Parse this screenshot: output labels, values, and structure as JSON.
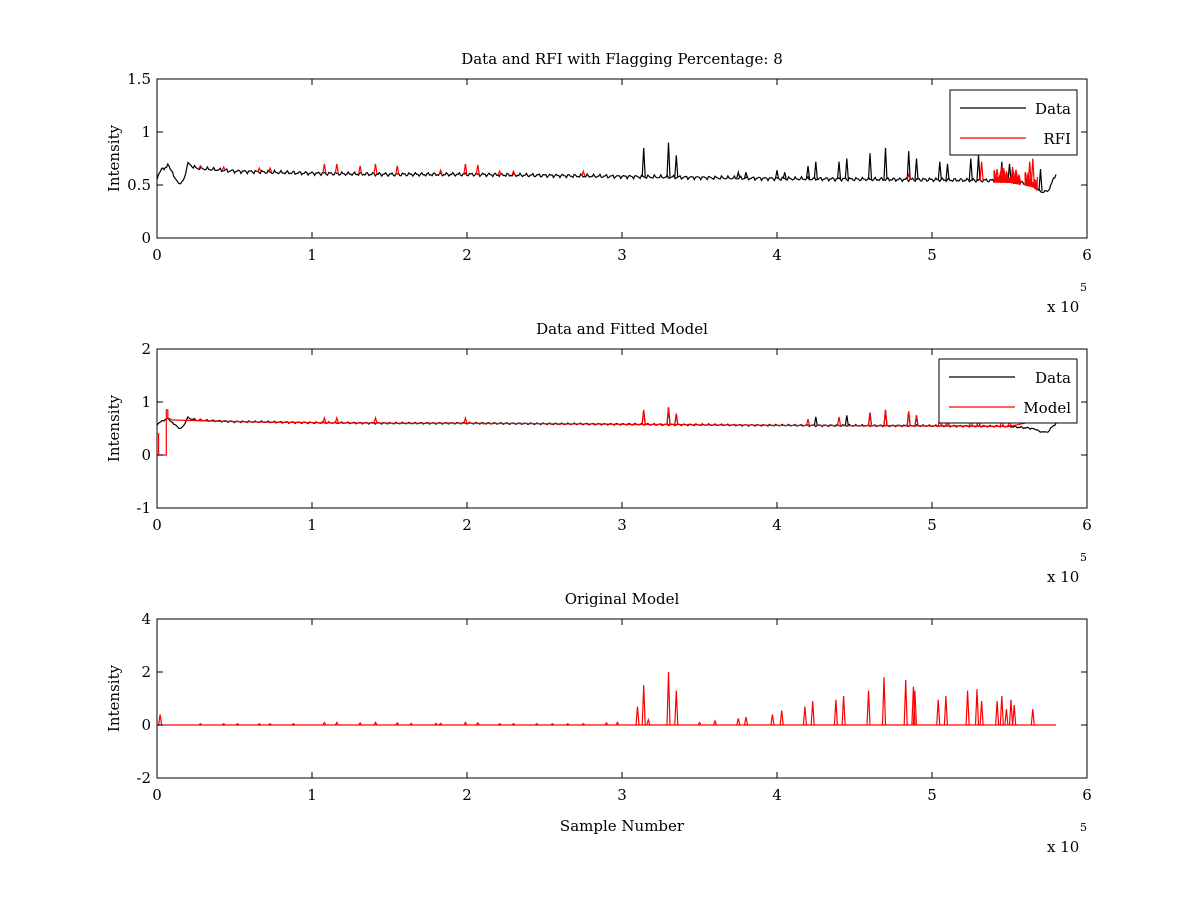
{
  "colors": {
    "data": "#000000",
    "rfi": "#ff0000",
    "model": "#ff0000",
    "axes": "#000000",
    "background": "#ffffff"
  },
  "chart_data": [
    {
      "type": "line",
      "title": "Data and RFI with Flagging Percentage: 8",
      "xlabel": "",
      "ylabel": "Intensity",
      "xlim": [
        0,
        6
      ],
      "ylim": [
        0,
        1.5
      ],
      "x_ticks": [
        "0",
        "1",
        "2",
        "3",
        "4",
        "5",
        "6"
      ],
      "y_ticks": [
        "0",
        "0.5",
        "1",
        "1.5"
      ],
      "x_exponent": {
        "base": "x 10",
        "power": "5"
      },
      "legend": {
        "position": "top-right",
        "entries": [
          "Data",
          "RFI"
        ]
      },
      "series": [
        {
          "name": "Data",
          "color": "#000000",
          "baseline": [
            [
              0,
              0.55
            ],
            [
              0.03,
              0.65
            ],
            [
              0.07,
              0.68
            ],
            [
              0.1,
              0.62
            ],
            [
              0.14,
              0.5
            ],
            [
              0.17,
              0.55
            ],
            [
              0.2,
              0.7
            ],
            [
              0.25,
              0.66
            ],
            [
              0.5,
              0.63
            ],
            [
              1,
              0.61
            ],
            [
              1.5,
              0.6
            ],
            [
              2,
              0.6
            ],
            [
              2.5,
              0.59
            ],
            [
              3,
              0.58
            ],
            [
              3.5,
              0.57
            ],
            [
              4,
              0.56
            ],
            [
              4.5,
              0.555
            ],
            [
              5,
              0.55
            ],
            [
              5.5,
              0.54
            ],
            [
              5.65,
              0.5
            ],
            [
              5.72,
              0.42
            ],
            [
              5.75,
              0.45
            ],
            [
              5.8,
              0.6
            ]
          ],
          "spikes": [
            [
              3.14,
              0.85
            ],
            [
              3.3,
              0.9
            ],
            [
              3.35,
              0.78
            ],
            [
              3.75,
              0.62
            ],
            [
              3.8,
              0.62
            ],
            [
              4.0,
              0.64
            ],
            [
              4.05,
              0.62
            ],
            [
              4.2,
              0.68
            ],
            [
              4.25,
              0.72
            ],
            [
              4.4,
              0.72
            ],
            [
              4.45,
              0.75
            ],
            [
              4.6,
              0.8
            ],
            [
              4.7,
              0.85
            ],
            [
              4.85,
              0.82
            ],
            [
              4.9,
              0.75
            ],
            [
              5.05,
              0.72
            ],
            [
              5.1,
              0.7
            ],
            [
              5.25,
              0.75
            ],
            [
              5.3,
              0.78
            ],
            [
              5.45,
              0.72
            ],
            [
              5.5,
              0.7
            ],
            [
              5.7,
              0.65
            ]
          ]
        },
        {
          "name": "RFI",
          "color": "#ff0000",
          "spikes": [
            [
              0.28,
              0.68
            ],
            [
              0.43,
              0.67
            ],
            [
              0.66,
              0.66
            ],
            [
              0.73,
              0.66
            ],
            [
              1.08,
              0.7
            ],
            [
              1.16,
              0.7
            ],
            [
              1.31,
              0.68
            ],
            [
              1.41,
              0.7
            ],
            [
              1.55,
              0.68
            ],
            [
              1.83,
              0.64
            ],
            [
              1.99,
              0.7
            ],
            [
              2.07,
              0.69
            ],
            [
              2.21,
              0.63
            ],
            [
              2.3,
              0.63
            ],
            [
              2.75,
              0.63
            ],
            [
              4.85,
              0.6
            ],
            [
              5.32,
              0.72
            ],
            [
              5.42,
              0.65
            ],
            [
              5.45,
              0.68
            ],
            [
              5.52,
              0.67
            ],
            [
              5.63,
              0.72
            ],
            [
              5.65,
              0.75
            ]
          ],
          "bursts": [
            [
              5.4,
              5.57
            ],
            [
              5.6,
              5.68
            ]
          ]
        }
      ]
    },
    {
      "type": "line",
      "title": "Data and Fitted Model",
      "xlabel": "",
      "ylabel": "Intensity",
      "xlim": [
        0,
        6
      ],
      "ylim": [
        -1,
        2
      ],
      "x_ticks": [
        "0",
        "1",
        "2",
        "3",
        "4",
        "5",
        "6"
      ],
      "y_ticks": [
        "-1",
        "0",
        "1",
        "2"
      ],
      "x_exponent": {
        "base": "x 10",
        "power": "5"
      },
      "legend": {
        "position": "top-right",
        "entries": [
          "Data",
          "Model"
        ]
      },
      "series": [
        {
          "name": "Data",
          "color": "#000000",
          "baseline": [
            [
              0,
              0.55
            ],
            [
              0.03,
              0.65
            ],
            [
              0.07,
              0.68
            ],
            [
              0.1,
              0.62
            ],
            [
              0.14,
              0.5
            ],
            [
              0.17,
              0.55
            ],
            [
              0.2,
              0.7
            ],
            [
              0.25,
              0.66
            ],
            [
              0.5,
              0.63
            ],
            [
              1,
              0.61
            ],
            [
              1.5,
              0.6
            ],
            [
              2,
              0.6
            ],
            [
              2.5,
              0.59
            ],
            [
              3,
              0.58
            ],
            [
              3.5,
              0.57
            ],
            [
              4,
              0.56
            ],
            [
              4.5,
              0.555
            ],
            [
              5,
              0.55
            ],
            [
              5.5,
              0.54
            ],
            [
              5.65,
              0.5
            ],
            [
              5.72,
              0.42
            ],
            [
              5.75,
              0.45
            ],
            [
              5.8,
              0.6
            ]
          ],
          "spikes": [
            [
              3.14,
              0.85
            ],
            [
              3.3,
              0.9
            ],
            [
              3.35,
              0.78
            ],
            [
              4.25,
              0.72
            ],
            [
              4.45,
              0.75
            ],
            [
              4.6,
              0.8
            ],
            [
              4.7,
              0.85
            ],
            [
              4.85,
              0.82
            ],
            [
              4.9,
              0.75
            ],
            [
              5.1,
              0.7
            ],
            [
              5.3,
              0.78
            ]
          ]
        },
        {
          "name": "Model",
          "color": "#ff0000",
          "step": [
            [
              0,
              0.4
            ],
            [
              0.01,
              0.4
            ],
            [
              0.01,
              0.0
            ],
            [
              0.06,
              0.0
            ],
            [
              0.06,
              0.85
            ],
            [
              0.07,
              0.85
            ],
            [
              0.07,
              0.7
            ],
            [
              0.1,
              0.66
            ],
            [
              0.5,
              0.63
            ],
            [
              1,
              0.61
            ],
            [
              1.5,
              0.6
            ],
            [
              2,
              0.6
            ],
            [
              2.5,
              0.59
            ],
            [
              3,
              0.58
            ],
            [
              3.5,
              0.57
            ],
            [
              4,
              0.56
            ],
            [
              4.5,
              0.555
            ],
            [
              5,
              0.55
            ],
            [
              5.5,
              0.54
            ],
            [
              5.6,
              0.6
            ]
          ],
          "spikes": [
            [
              0.28,
              0.68
            ],
            [
              1.08,
              0.7
            ],
            [
              1.16,
              0.7
            ],
            [
              1.41,
              0.7
            ],
            [
              1.99,
              0.7
            ],
            [
              3.14,
              0.85
            ],
            [
              3.3,
              0.9
            ],
            [
              3.35,
              0.78
            ],
            [
              4.2,
              0.68
            ],
            [
              4.4,
              0.72
            ],
            [
              4.6,
              0.8
            ],
            [
              4.7,
              0.85
            ],
            [
              4.85,
              0.82
            ],
            [
              4.9,
              0.75
            ],
            [
              5.05,
              0.72
            ],
            [
              5.1,
              0.7
            ],
            [
              5.25,
              0.75
            ],
            [
              5.3,
              0.78
            ],
            [
              5.45,
              0.72
            ],
            [
              5.5,
              0.7
            ]
          ]
        }
      ]
    },
    {
      "type": "line",
      "title": "Original Model",
      "xlabel": "Sample Number",
      "ylabel": "Intensity",
      "xlim": [
        0,
        6
      ],
      "ylim": [
        -2,
        4
      ],
      "x_ticks": [
        "0",
        "1",
        "2",
        "3",
        "4",
        "5",
        "6"
      ],
      "y_ticks": [
        "-2",
        "0",
        "2",
        "4"
      ],
      "x_exponent": {
        "base": "x 10",
        "power": "5"
      },
      "legend": null,
      "series": [
        {
          "name": "Model",
          "color": "#ff0000",
          "baseline": [
            [
              0,
              0
            ],
            [
              5.8,
              0
            ]
          ],
          "spikes": [
            [
              0.02,
              0.4
            ],
            [
              0.28,
              0.05
            ],
            [
              0.43,
              0.05
            ],
            [
              0.52,
              0.05
            ],
            [
              0.66,
              0.05
            ],
            [
              0.73,
              0.05
            ],
            [
              0.88,
              0.05
            ],
            [
              1.08,
              0.1
            ],
            [
              1.16,
              0.1
            ],
            [
              1.31,
              0.08
            ],
            [
              1.41,
              0.1
            ],
            [
              1.55,
              0.08
            ],
            [
              1.64,
              0.06
            ],
            [
              1.8,
              0.06
            ],
            [
              1.83,
              0.06
            ],
            [
              1.99,
              0.1
            ],
            [
              2.07,
              0.08
            ],
            [
              2.21,
              0.05
            ],
            [
              2.3,
              0.05
            ],
            [
              2.45,
              0.05
            ],
            [
              2.55,
              0.05
            ],
            [
              2.65,
              0.05
            ],
            [
              2.75,
              0.05
            ],
            [
              2.9,
              0.08
            ],
            [
              2.97,
              0.1
            ],
            [
              3.1,
              0.7
            ],
            [
              3.14,
              1.5
            ],
            [
              3.17,
              0.2
            ],
            [
              3.3,
              2.0
            ],
            [
              3.35,
              1.3
            ],
            [
              3.5,
              0.1
            ],
            [
              3.6,
              0.15
            ],
            [
              3.75,
              0.25
            ],
            [
              3.8,
              0.3
            ],
            [
              3.97,
              0.4
            ],
            [
              4.03,
              0.55
            ],
            [
              4.18,
              0.7
            ],
            [
              4.23,
              0.9
            ],
            [
              4.38,
              0.95
            ],
            [
              4.43,
              1.1
            ],
            [
              4.59,
              1.3
            ],
            [
              4.69,
              1.8
            ],
            [
              4.83,
              1.7
            ],
            [
              4.88,
              1.45
            ],
            [
              4.89,
              1.3
            ],
            [
              5.04,
              0.95
            ],
            [
              5.09,
              1.1
            ],
            [
              5.23,
              1.3
            ],
            [
              5.29,
              1.35
            ],
            [
              5.32,
              0.9
            ],
            [
              5.42,
              0.9
            ],
            [
              5.45,
              1.1
            ],
            [
              5.48,
              0.6
            ],
            [
              5.51,
              0.95
            ],
            [
              5.53,
              0.75
            ],
            [
              5.65,
              0.6
            ]
          ]
        }
      ]
    }
  ]
}
